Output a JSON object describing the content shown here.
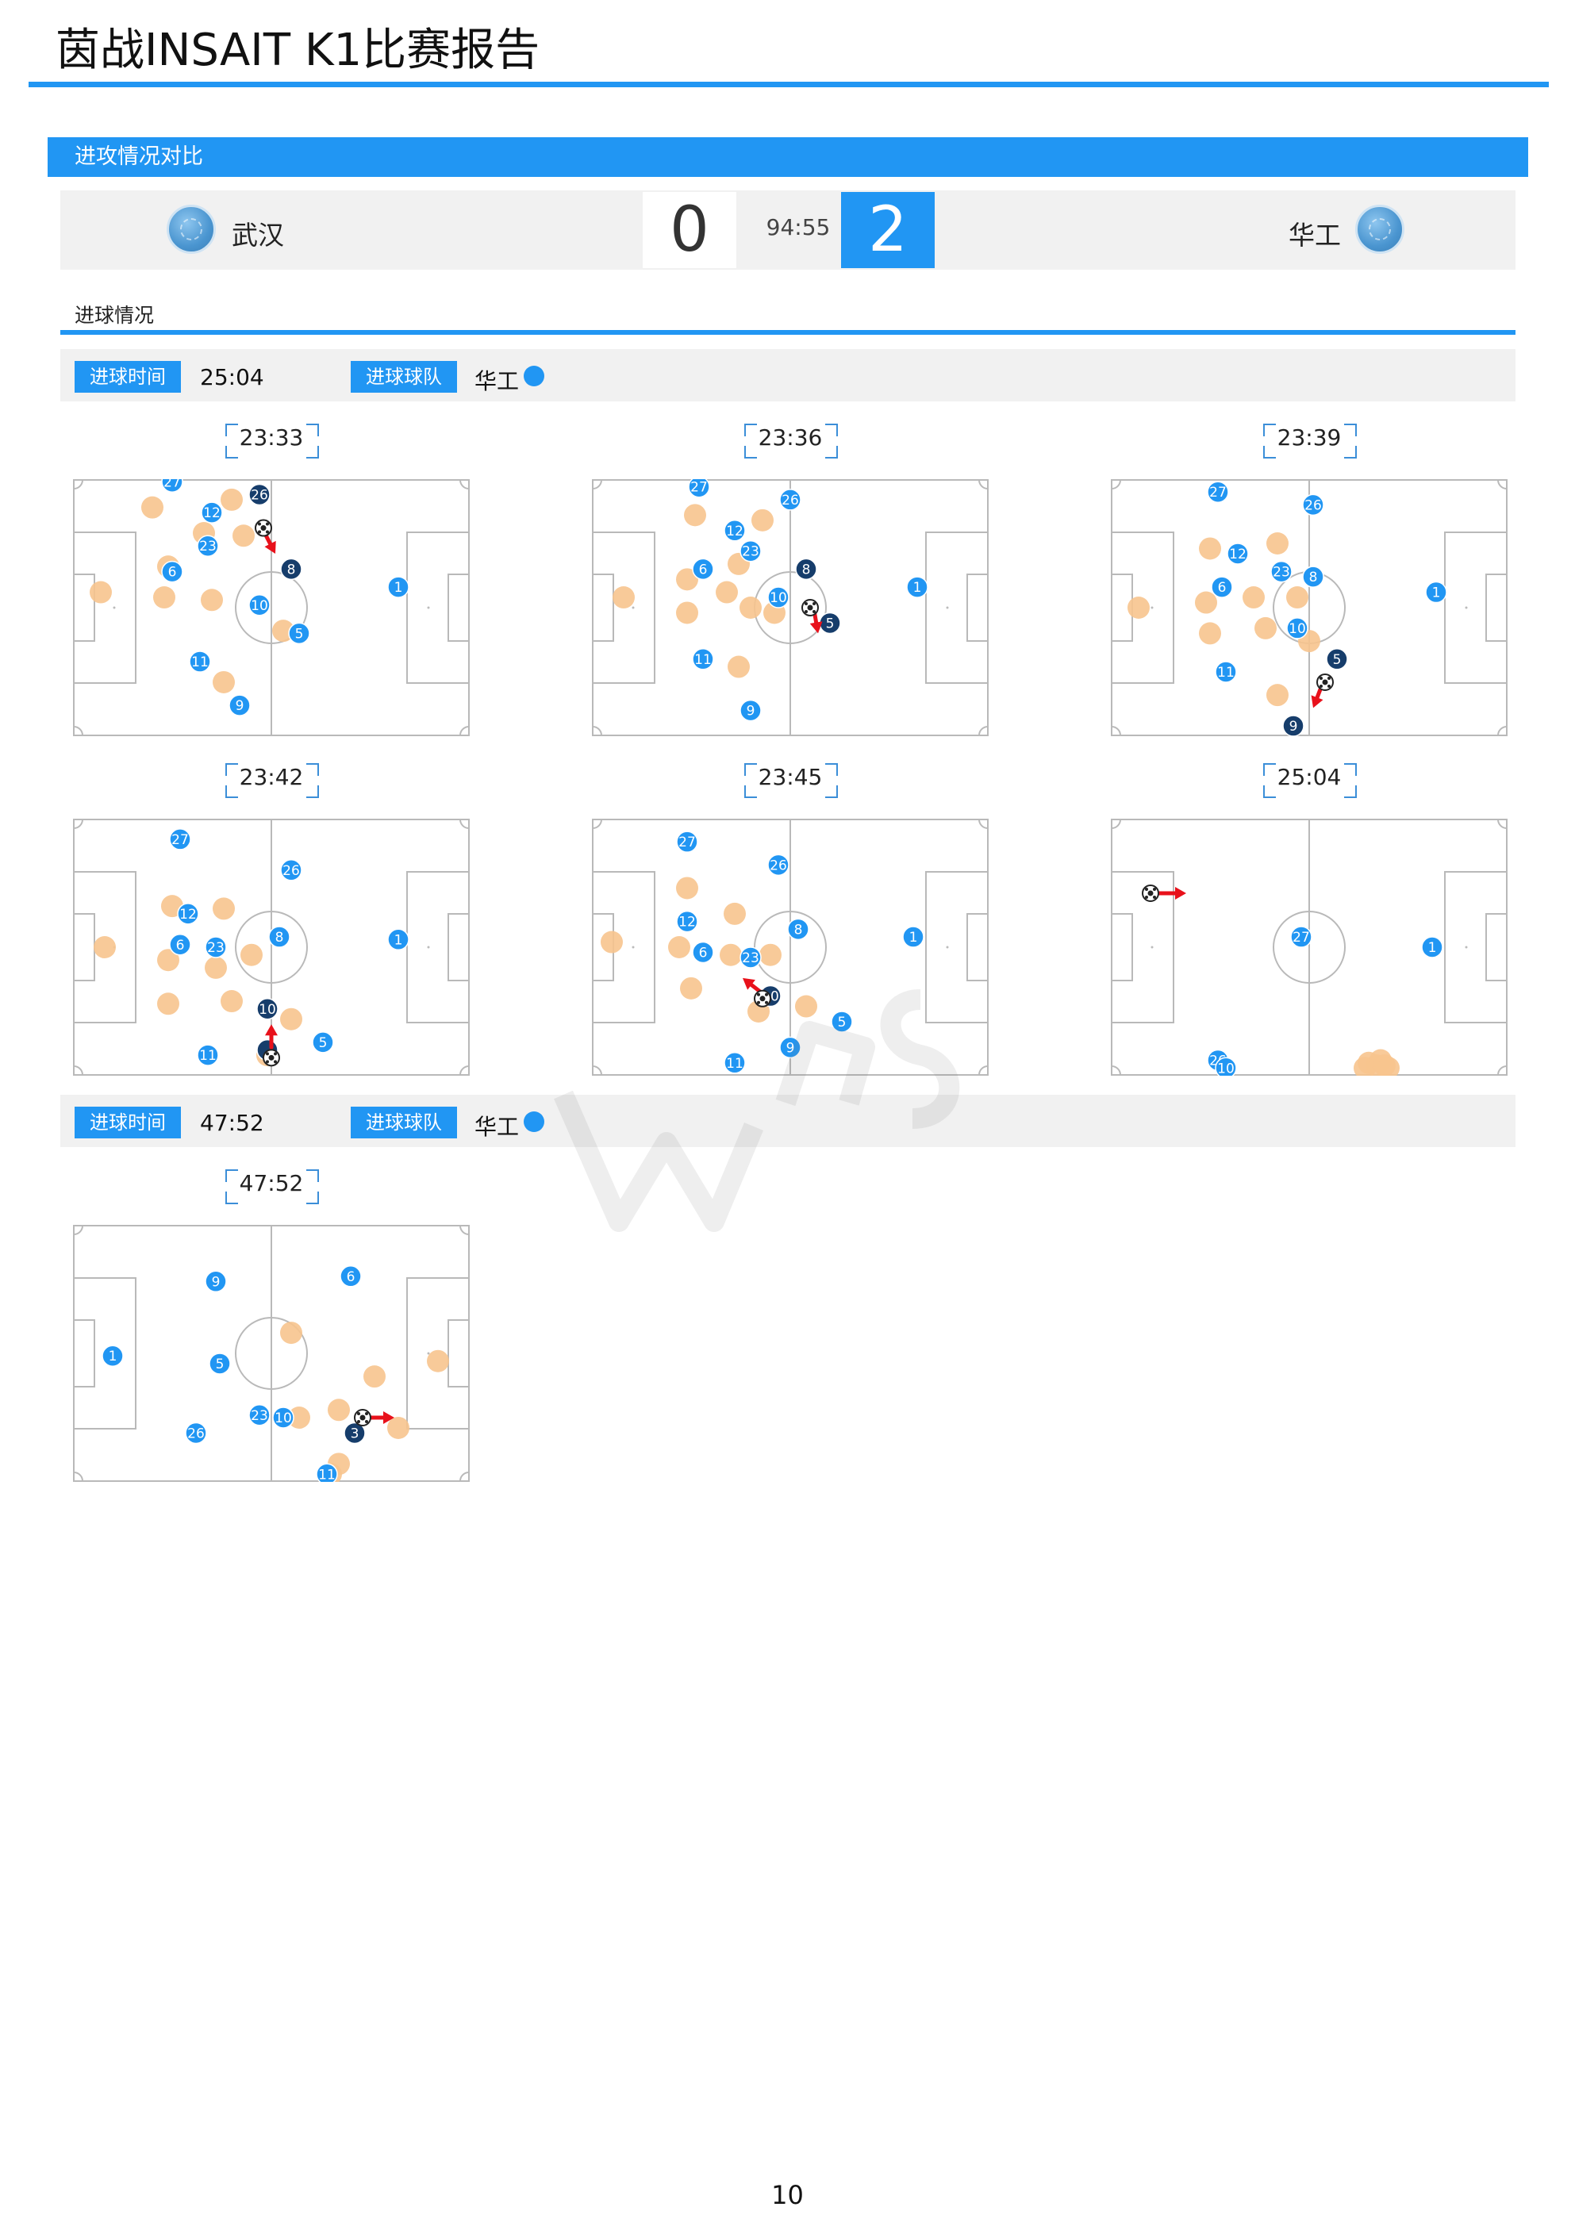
{
  "header": {
    "title": "茵战INSAIT K1比赛报告"
  },
  "section": {
    "title": "进攻情况对比"
  },
  "match": {
    "home_name": "武汉",
    "home_score": "0",
    "time": "94:55",
    "away_score": "2",
    "away_name": "华工"
  },
  "goals_section": {
    "title": "进球情况"
  },
  "labels": {
    "time": "进球时间",
    "team": "进球球队"
  },
  "colors": {
    "accent": "#2196f3",
    "attack": "#2196f3",
    "attack_carrier": "#163d6b",
    "defend": "#f7c48e",
    "arrow": "#e8111b"
  },
  "goals": [
    {
      "time": "25:04",
      "team": "华工",
      "frames": [
        {
          "time": "23:33",
          "blue": [
            [
              "27",
              25,
              1
            ],
            [
              "26",
              47,
              6
            ],
            [
              "12",
              35,
              13
            ],
            [
              "23",
              34,
              26
            ],
            [
              "6",
              25,
              36
            ],
            [
              "10",
              47,
              49
            ],
            [
              "5",
              57,
              60
            ],
            [
              "11",
              32,
              71
            ],
            [
              "9",
              42,
              88
            ],
            [
              "1",
              82,
              42
            ]
          ],
          "dark": [
            [
              "26",
              47,
              6
            ],
            [
              "8",
              55,
              35
            ]
          ],
          "orange": [
            [
              20,
              11
            ],
            [
              40,
              8
            ],
            [
              43,
              22
            ],
            [
              24,
              34
            ],
            [
              23,
              46
            ],
            [
              35,
              47
            ],
            [
              53,
              59
            ],
            [
              38,
              79
            ],
            [
              7,
              44
            ],
            [
              33,
              21
            ]
          ],
          "ball": [
            48,
            19
          ],
          "arrow": [
            48,
            20,
            51,
            29
          ]
        },
        {
          "time": "23:36",
          "blue": [
            [
              "27",
              27,
              3
            ],
            [
              "26",
              50,
              8
            ],
            [
              "12",
              36,
              20
            ],
            [
              "23",
              40,
              28
            ],
            [
              "6",
              28,
              35
            ],
            [
              "10",
              47,
              46
            ],
            [
              "11",
              28,
              70
            ],
            [
              "9",
              40,
              90
            ],
            [
              "1",
              82,
              42
            ]
          ],
          "dark": [
            [
              "8",
              54,
              35
            ],
            [
              "5",
              60,
              56
            ]
          ],
          "orange": [
            [
              26,
              14
            ],
            [
              43,
              16
            ],
            [
              24,
              39
            ],
            [
              24,
              52
            ],
            [
              37,
              33
            ],
            [
              40,
              50
            ],
            [
              46,
              52
            ],
            [
              34,
              44
            ],
            [
              37,
              73
            ],
            [
              8,
              46
            ]
          ],
          "ball": [
            55,
            50
          ],
          "arrow": [
            56,
            51,
            57,
            60
          ]
        },
        {
          "time": "23:39",
          "blue": [
            [
              "27",
              27,
              5
            ],
            [
              "26",
              51,
              10
            ],
            [
              "12",
              32,
              29
            ],
            [
              "6",
              28,
              42
            ],
            [
              "23",
              43,
              36
            ],
            [
              "8",
              51,
              38
            ],
            [
              "10",
              47,
              58
            ],
            [
              "11",
              29,
              75
            ],
            [
              "1",
              82,
              44
            ]
          ],
          "dark": [
            [
              "5",
              57,
              70
            ],
            [
              "9",
              46,
              96
            ]
          ],
          "orange": [
            [
              25,
              27
            ],
            [
              42,
              25
            ],
            [
              24,
              48
            ],
            [
              36,
              46
            ],
            [
              47,
              46
            ],
            [
              39,
              58
            ],
            [
              25,
              60
            ],
            [
              50,
              63
            ],
            [
              42,
              84
            ],
            [
              7,
              50
            ]
          ],
          "ball": [
            54,
            79
          ],
          "arrow": [
            53,
            81,
            51,
            89
          ]
        },
        {
          "time": "23:42",
          "blue": [
            [
              "27",
              27,
              8
            ],
            [
              "26",
              55,
              20
            ],
            [
              "12",
              29,
              37
            ],
            [
              "6",
              27,
              49
            ],
            [
              "23",
              36,
              50
            ],
            [
              "8",
              52,
              46
            ],
            [
              "5",
              63,
              87
            ],
            [
              "11",
              34,
              92
            ],
            [
              "1",
              82,
              47
            ]
          ],
          "dark": [
            [
              "10",
              49,
              74
            ],
            [
              "",
              49,
              90
            ]
          ],
          "orange": [
            [
              25,
              34
            ],
            [
              38,
              35
            ],
            [
              24,
              55
            ],
            [
              36,
              58
            ],
            [
              45,
              53
            ],
            [
              24,
              72
            ],
            [
              40,
              71
            ],
            [
              55,
              78
            ],
            [
              49,
              92
            ],
            [
              8,
              50
            ]
          ],
          "ball": [
            50,
            93
          ],
          "arrow": [
            50,
            89,
            50,
            80
          ]
        },
        {
          "time": "23:45",
          "blue": [
            [
              "27",
              24,
              9
            ],
            [
              "26",
              47,
              18
            ],
            [
              "12",
              24,
              40
            ],
            [
              "6",
              28,
              52
            ],
            [
              "23",
              40,
              54
            ],
            [
              "8",
              52,
              43
            ],
            [
              "5",
              63,
              79
            ],
            [
              "11",
              36,
              95
            ],
            [
              "9",
              50,
              89
            ],
            [
              "1",
              81,
              46
            ]
          ],
          "dark": [
            [
              "10",
              45,
              69
            ]
          ],
          "orange": [
            [
              24,
              27
            ],
            [
              36,
              37
            ],
            [
              22,
              50
            ],
            [
              35,
              53
            ],
            [
              45,
              53
            ],
            [
              25,
              66
            ],
            [
              42,
              75
            ],
            [
              54,
              73
            ],
            [
              5,
              48
            ]
          ],
          "ball": [
            43,
            70
          ],
          "arrow": [
            43,
            68,
            38,
            62
          ]
        },
        {
          "time": "25:04",
          "blue": [
            [
              "27",
              48,
              46
            ],
            [
              "1",
              81,
              50
            ],
            [
              "26",
              27,
              94
            ],
            [
              "10",
              29,
              97
            ]
          ],
          "dark": [],
          "orange": [
            [
              65,
              95
            ],
            [
              67,
              96
            ],
            [
              68,
              94
            ],
            [
              69,
              96
            ],
            [
              70,
              97
            ],
            [
              64,
              97
            ]
          ],
          "ball": [
            10,
            29
          ],
          "arrow": [
            12,
            29,
            19,
            29
          ]
        }
      ]
    },
    {
      "time": "47:52",
      "team": "华工",
      "frames": [
        {
          "time": "47:52",
          "blue": [
            [
              "9",
              36,
              22
            ],
            [
              "6",
              70,
              20
            ],
            [
              "1",
              10,
              51
            ],
            [
              "5",
              37,
              54
            ],
            [
              "23",
              47,
              74
            ],
            [
              "10",
              53,
              75
            ],
            [
              "26",
              31,
              81
            ],
            [
              "11",
              64,
              97
            ]
          ],
          "dark": [
            [
              "3",
              71,
              81
            ]
          ],
          "orange": [
            [
              55,
              42
            ],
            [
              92,
              53
            ],
            [
              76,
              59
            ],
            [
              67,
              72
            ],
            [
              57,
              75
            ],
            [
              82,
              79
            ],
            [
              67,
              93
            ],
            [
              65,
              97
            ]
          ],
          "ball": [
            73,
            75
          ],
          "arrow": [
            75,
            75,
            81,
            75
          ]
        }
      ]
    }
  ],
  "page": {
    "number": "10"
  },
  "watermark": {
    "text": "WPS"
  }
}
